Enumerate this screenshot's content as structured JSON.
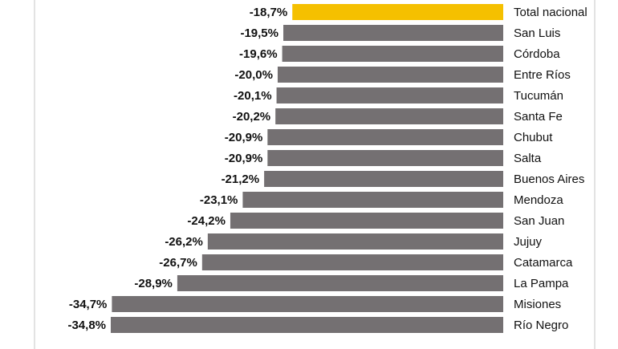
{
  "chart_data": {
    "type": "bar",
    "orientation": "horizontal",
    "categories": [
      "Total nacional",
      "San Luis",
      "Córdoba",
      "Entre Ríos",
      "Tucumán",
      "Santa Fe",
      "Chubut",
      "Salta",
      "Buenos Aires",
      "Mendoza",
      "San Juan",
      "Jujuy",
      "Catamarca",
      "La Pampa",
      "Misiones",
      "Río Negro"
    ],
    "values": [
      -18.7,
      -19.5,
      -19.6,
      -20.0,
      -20.1,
      -20.2,
      -20.9,
      -20.9,
      -21.2,
      -23.1,
      -24.2,
      -26.2,
      -26.7,
      -28.9,
      -34.7,
      -34.8
    ],
    "value_labels": [
      "-18,7%",
      "-19,5%",
      "-19,6%",
      "-20,0%",
      "-20,1%",
      "-20,2%",
      "-20,9%",
      "-20,9%",
      "-21,2%",
      "-23,1%",
      "-24,2%",
      "-26,2%",
      "-26,7%",
      "-28,9%",
      "-34,7%",
      "-34,8%"
    ],
    "highlight_category": "Total nacional",
    "colors": {
      "highlight": "#f5c000",
      "default": "#747072"
    },
    "xlim": [
      -34.8,
      0
    ],
    "grid": false,
    "legend": "none",
    "title": "",
    "xlabel": "",
    "ylabel": ""
  }
}
